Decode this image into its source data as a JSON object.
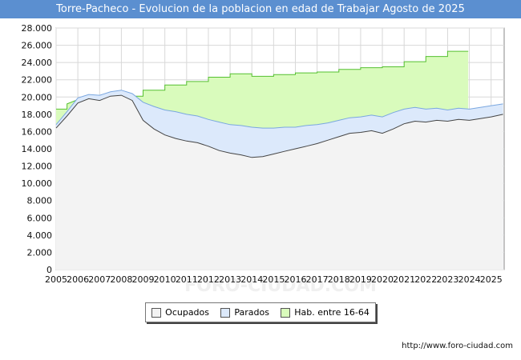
{
  "title": "Torre-Pacheco - Evolucion de la poblacion en edad de Trabajar Agosto de 2025",
  "footer": "http://www.foro-ciudad.com",
  "watermark": "FORO-CIUDAD.COM",
  "colors": {
    "title_bg": "#5b8fd0",
    "ocupados_fill": "#f3f3f3",
    "parados_fill": "#dce9fb",
    "hab_fill": "#d9fbbc",
    "ocupados_line": "#444444",
    "parados_line": "#7aa7e0",
    "hab_line": "#55c030"
  },
  "chart_data": {
    "type": "area",
    "title": "Torre-Pacheco - Evolucion de la poblacion en edad de Trabajar Agosto de 2025",
    "xlim": [
      2005,
      2025.6
    ],
    "ylim": [
      0,
      28000
    ],
    "grid": true,
    "legend_position": "bottom",
    "x_ticks": [
      "2005",
      "2006",
      "2007",
      "2008",
      "2009",
      "2010",
      "2011",
      "2012",
      "2013",
      "2014",
      "2015",
      "2016",
      "2017",
      "2018",
      "2019",
      "2020",
      "2021",
      "2022",
      "2023",
      "2024",
      "2025"
    ],
    "y_ticks": [
      "0",
      "2.000",
      "4.000",
      "6.000",
      "8.000",
      "10.000",
      "12.000",
      "14.000",
      "16.000",
      "18.000",
      "20.000",
      "22.000",
      "24.000",
      "26.000",
      "28.000"
    ],
    "series": [
      {
        "name": "Ocupados",
        "x": [
          2005.0,
          2005.5,
          2006.0,
          2006.5,
          2007.0,
          2007.5,
          2008.0,
          2008.5,
          2009.0,
          2009.5,
          2010.0,
          2010.5,
          2011.0,
          2011.5,
          2012.0,
          2012.5,
          2013.0,
          2013.5,
          2014.0,
          2014.5,
          2015.0,
          2015.5,
          2016.0,
          2016.5,
          2017.0,
          2017.5,
          2018.0,
          2018.5,
          2019.0,
          2019.5,
          2020.0,
          2020.5,
          2021.0,
          2021.5,
          2022.0,
          2022.5,
          2023.0,
          2023.5,
          2024.0,
          2024.5,
          2025.0,
          2025.55
        ],
        "values": [
          16400,
          17800,
          19300,
          19800,
          19600,
          20100,
          20200,
          19600,
          17300,
          16300,
          15600,
          15200,
          14900,
          14700,
          14300,
          13800,
          13500,
          13300,
          13000,
          13100,
          13400,
          13700,
          14000,
          14300,
          14600,
          15000,
          15400,
          15800,
          15900,
          16100,
          15800,
          16300,
          16900,
          17200,
          17100,
          17300,
          17200,
          17400,
          17300,
          17500,
          17700,
          18000
        ]
      },
      {
        "name": "Parados",
        "x": [
          2005.0,
          2005.5,
          2006.0,
          2006.5,
          2007.0,
          2007.5,
          2008.0,
          2008.5,
          2009.0,
          2009.5,
          2010.0,
          2010.5,
          2011.0,
          2011.5,
          2012.0,
          2012.5,
          2013.0,
          2013.5,
          2014.0,
          2014.5,
          2015.0,
          2015.5,
          2016.0,
          2016.5,
          2017.0,
          2017.5,
          2018.0,
          2018.5,
          2019.0,
          2019.5,
          2020.0,
          2020.5,
          2021.0,
          2021.5,
          2022.0,
          2022.5,
          2023.0,
          2023.5,
          2024.0,
          2024.5,
          2025.0,
          2025.55
        ],
        "values": [
          16800,
          18300,
          19900,
          20300,
          20200,
          20600,
          20800,
          20400,
          19400,
          18900,
          18500,
          18300,
          18000,
          17800,
          17400,
          17100,
          16800,
          16700,
          16500,
          16400,
          16400,
          16500,
          16500,
          16700,
          16800,
          17000,
          17300,
          17600,
          17700,
          17900,
          17700,
          18200,
          18600,
          18800,
          18600,
          18700,
          18500,
          18700,
          18600,
          18800,
          19000,
          19200
        ]
      },
      {
        "name": "Hab. entre 16-64",
        "x": [
          2005.0,
          2005.5,
          2005.5,
          2006.0,
          2007.0,
          2008.0,
          2008.0,
          2009.0,
          2009.0,
          2010.0,
          2010.0,
          2011.0,
          2011.0,
          2012.0,
          2012.0,
          2013.0,
          2013.0,
          2014.0,
          2014.0,
          2015.0,
          2015.0,
          2016.0,
          2016.0,
          2017.0,
          2017.0,
          2018.0,
          2018.0,
          2019.0,
          2019.0,
          2020.0,
          2020.0,
          2021.0,
          2021.0,
          2022.0,
          2022.0,
          2023.0,
          2023.0,
          2023.95
        ],
        "values": [
          18600,
          18600,
          19200,
          19700,
          20000,
          20000,
          20100,
          20100,
          20800,
          20800,
          21400,
          21400,
          21800,
          21800,
          22300,
          22300,
          22700,
          22700,
          22400,
          22400,
          22600,
          22600,
          22800,
          22800,
          22900,
          22900,
          23200,
          23200,
          23400,
          23400,
          23500,
          23500,
          24100,
          24100,
          24700,
          24700,
          25300,
          25300
        ]
      }
    ]
  }
}
